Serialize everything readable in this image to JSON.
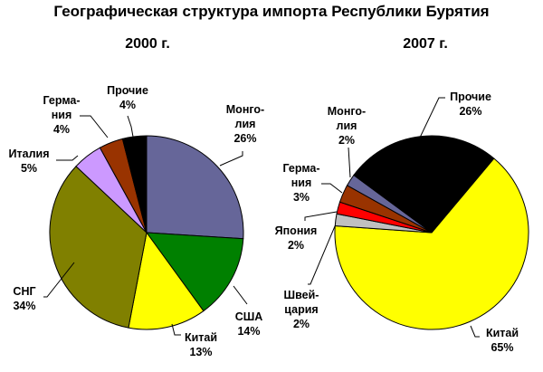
{
  "chart_data": {
    "title": "Географическая структура импорта Республики Бурятия",
    "type": "pie",
    "charts": [
      {
        "subtitle": "2000 г.",
        "start_angle_deg": 0,
        "direction": "clockwise",
        "slices": [
          {
            "name": "Монго-\nлия",
            "label": "26%",
            "value": 26,
            "color": "#666699"
          },
          {
            "name": "США",
            "label": "14%",
            "value": 14,
            "color": "#008000"
          },
          {
            "name": "Китай",
            "label": "13%",
            "value": 13,
            "color": "#ffff00"
          },
          {
            "name": "СНГ",
            "label": "34%",
            "value": 34,
            "color": "#808000"
          },
          {
            "name": "Италия",
            "label": "5%",
            "value": 5,
            "color": "#cc99ff"
          },
          {
            "name": "Герма-\nния",
            "label": "4%",
            "value": 4,
            "color": "#993300"
          },
          {
            "name": "Прочие",
            "label": "4%",
            "value": 4,
            "color": "#000000"
          }
        ]
      },
      {
        "subtitle": "2007 г.",
        "start_angle_deg": 40,
        "direction": "clockwise",
        "slices": [
          {
            "name": "Китай",
            "label": "65%",
            "value": 65,
            "color": "#ffff00"
          },
          {
            "name": "Швей-\nцария",
            "label": "2%",
            "value": 2,
            "color": "#c0c0c0"
          },
          {
            "name": "Япония",
            "label": "2%",
            "value": 2,
            "color": "#ff0000"
          },
          {
            "name": "Герма-\nния",
            "label": "3%",
            "value": 3,
            "color": "#993300"
          },
          {
            "name": "Монго-\nлия",
            "label": "2%",
            "value": 2,
            "color": "#666699"
          },
          {
            "name": "Прочие",
            "label": "26%",
            "value": 26,
            "color": "#000000"
          }
        ]
      }
    ]
  }
}
